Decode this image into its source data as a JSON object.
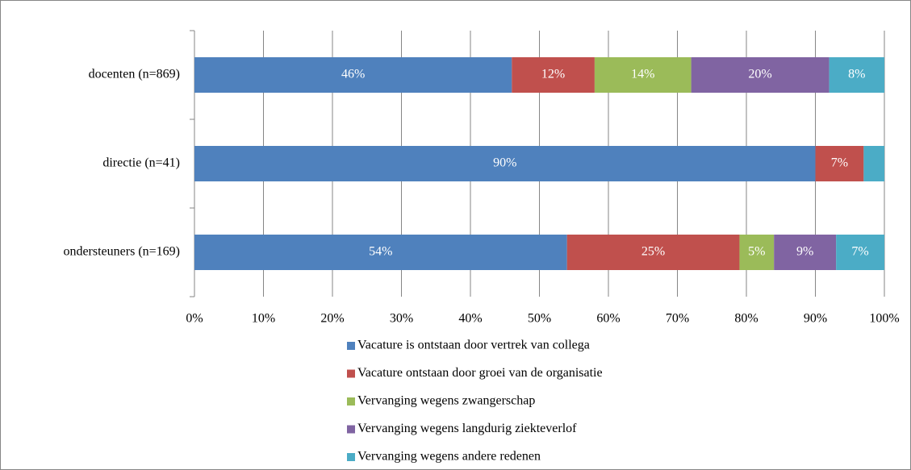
{
  "chart_data": {
    "type": "stacked-bar-horizontal",
    "categories": [
      "docenten (n=869)",
      "directie (n=41)",
      "ondersteuners (n=169)"
    ],
    "series": [
      {
        "name": "Vacature is ontstaan door vertrek van collega",
        "color": "#4f81bd",
        "values": [
          46,
          90,
          54
        ],
        "value_labels": [
          "46%",
          "90%",
          "54%"
        ]
      },
      {
        "name": "Vacature ontstaan door groei van de organisatie",
        "color": "#c0504d",
        "values": [
          12,
          7,
          25
        ],
        "value_labels": [
          "12%",
          "7%",
          "25%"
        ]
      },
      {
        "name": "Vervanging wegens zwangerschap",
        "color": "#9bbb59",
        "values": [
          14,
          0,
          5
        ],
        "value_labels": [
          "14%",
          null,
          "5%"
        ]
      },
      {
        "name": "Vervanging wegens langdurig ziekteverlof",
        "color": "#8064a2",
        "values": [
          20,
          0,
          9
        ],
        "value_labels": [
          "20%",
          null,
          "9%"
        ]
      },
      {
        "name": "Vervanging wegens andere redenen",
        "color": "#4bacc6",
        "values": [
          8,
          3,
          7
        ],
        "value_labels": [
          "8%",
          null,
          "7%"
        ]
      }
    ],
    "xlim": [
      0,
      100
    ],
    "xticks": [
      {
        "value": 0,
        "label": "0%"
      },
      {
        "value": 10,
        "label": "10%"
      },
      {
        "value": 20,
        "label": "20%"
      },
      {
        "value": 30,
        "label": "30%"
      },
      {
        "value": 40,
        "label": "40%"
      },
      {
        "value": 50,
        "label": "50%"
      },
      {
        "value": 60,
        "label": "60%"
      },
      {
        "value": 70,
        "label": "70%"
      },
      {
        "value": 80,
        "label": "80%"
      },
      {
        "value": 90,
        "label": "90%"
      },
      {
        "value": 100,
        "label": "100%"
      }
    ],
    "grid": true,
    "legend": "bottom"
  }
}
